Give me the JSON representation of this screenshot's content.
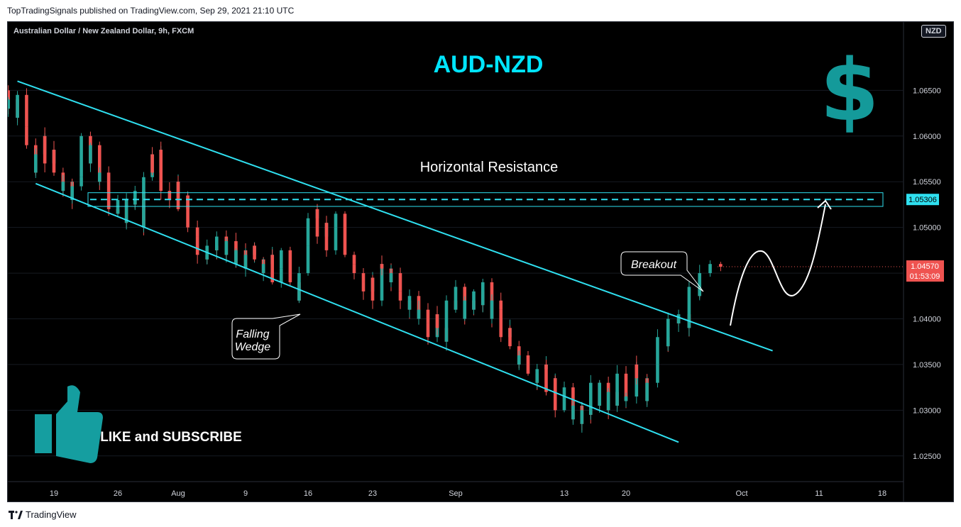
{
  "header": {
    "published": "TopTradingSignals published on TradingView.com, Sep 29, 2021 21:10 UTC"
  },
  "footer": {
    "brand": "TradingView"
  },
  "chart_data": {
    "type": "candlestick",
    "symbol": "Australian Dollar / New Zealand Dollar, 9h, FXCM",
    "currency": "NZD",
    "title": "AUD-NZD",
    "y_axis": {
      "ticks": [
        "1.06500",
        "1.06000",
        "1.05500",
        "1.05000",
        "1.04500",
        "1.04000",
        "1.03500",
        "1.03000",
        "1.02500"
      ],
      "range": [
        1.0225,
        1.0679
      ]
    },
    "x_axis": {
      "ticks": [
        {
          "label": "19",
          "date": "2021-07-19"
        },
        {
          "label": "26",
          "date": "2021-07-26"
        },
        {
          "label": "Aug",
          "date": "2021-08-02"
        },
        {
          "label": "9",
          "date": "2021-08-09"
        },
        {
          "label": "16",
          "date": "2021-08-16"
        },
        {
          "label": "23",
          "date": "2021-08-23"
        },
        {
          "label": "Sep",
          "date": "2021-09-01"
        },
        {
          "label": "13",
          "date": "2021-09-13"
        },
        {
          "label": "20",
          "date": "2021-09-20"
        },
        {
          "label": "Oct",
          "date": "2021-10-01"
        },
        {
          "label": "11",
          "date": "2021-10-11"
        },
        {
          "label": "18",
          "date": "2021-10-18"
        }
      ]
    },
    "colors": {
      "up": "#26a69a",
      "down": "#ef5350",
      "annotation": "#2fe0f0",
      "label_text": "#ffffff"
    },
    "close_path": [
      1.066,
      1.065,
      1.063,
      1.064,
      1.062,
      1.0645,
      1.061,
      1.059,
      1.056,
      1.058,
      1.06,
      1.057,
      1.0585,
      1.056,
      1.054,
      1.055,
      1.053,
      1.0545,
      1.0555,
      1.06,
      1.057,
      1.059,
      1.055,
      1.056,
      1.053,
      1.052,
      1.0515,
      1.053,
      1.0505,
      1.053,
      1.0525,
      1.054,
      1.05,
      1.0555,
      1.058,
      1.056,
      1.0585,
      1.054,
      1.053,
      1.055,
      1.052,
      1.0535,
      1.05,
      1.049,
      1.047,
      1.0465,
      1.048,
      1.0475,
      1.049,
      1.047,
      1.0485,
      1.046,
      1.0475,
      1.0455,
      1.047,
      1.048,
      1.0465,
      1.045,
      1.046,
      1.047,
      1.044,
      1.0455,
      1.0475,
      1.0445,
      1.044,
      1.042,
      1.045,
      1.048,
      1.051,
      1.052,
      1.049,
      1.0505,
      1.0475,
      1.05,
      1.0515,
      1.047,
      1.046,
      1.045,
      1.044,
      1.043,
      1.0445,
      1.042,
      1.046,
      1.0455,
      1.044,
      1.045,
      1.043,
      1.042,
      1.041,
      1.0425,
      1.04,
      1.041,
      1.0395,
      1.038,
      1.0405,
      1.039,
      1.0375,
      1.042,
      1.041,
      1.0435,
      1.04,
      1.042,
      1.041,
      1.043,
      1.0415,
      1.044,
      1.04,
      1.042,
      1.041,
      1.038,
      1.039,
      1.037,
      1.035,
      1.036,
      1.034,
      1.033,
      1.0345,
      1.035,
      1.032,
      1.0335,
      1.03,
      1.031,
      1.0325,
      1.029,
      1.0305,
      1.0285,
      1.03,
      1.0295,
      1.033,
      1.0305,
      1.033,
      1.03,
      1.032,
      1.0305,
      1.034,
      1.031,
      1.0315,
      1.035,
      1.0335,
      1.031,
      1.033,
      1.035,
      1.038,
      1.037,
      1.04,
      1.0395,
      1.0405,
      1.039,
      1.0435,
      1.0425,
      1.045,
      1.046,
      1.0457
    ],
    "indicators": {
      "current_price": "1.04570",
      "countdown": "01:53:09",
      "resistance_level": "1.05306",
      "resistance_price": 1.05306
    },
    "annotations": {
      "title": "AUD-NZD",
      "dollar_symbol": "$",
      "resistance_label": "Horizontal Resistance",
      "wedge_label": [
        "Falling",
        "Wedge"
      ],
      "breakout_label": "Breakout",
      "cta": "LIKE and SUBSCRIBE"
    },
    "wedge_lines": {
      "upper": [
        [
          "2021-07-15",
          1.066
        ],
        [
          "2021-10-05",
          1.0365
        ]
      ],
      "lower": [
        [
          "2021-07-17",
          1.0548
        ],
        [
          "2021-09-25",
          1.0265
        ]
      ]
    },
    "resistance_zone": [
      1.0523,
      1.0538
    ]
  }
}
